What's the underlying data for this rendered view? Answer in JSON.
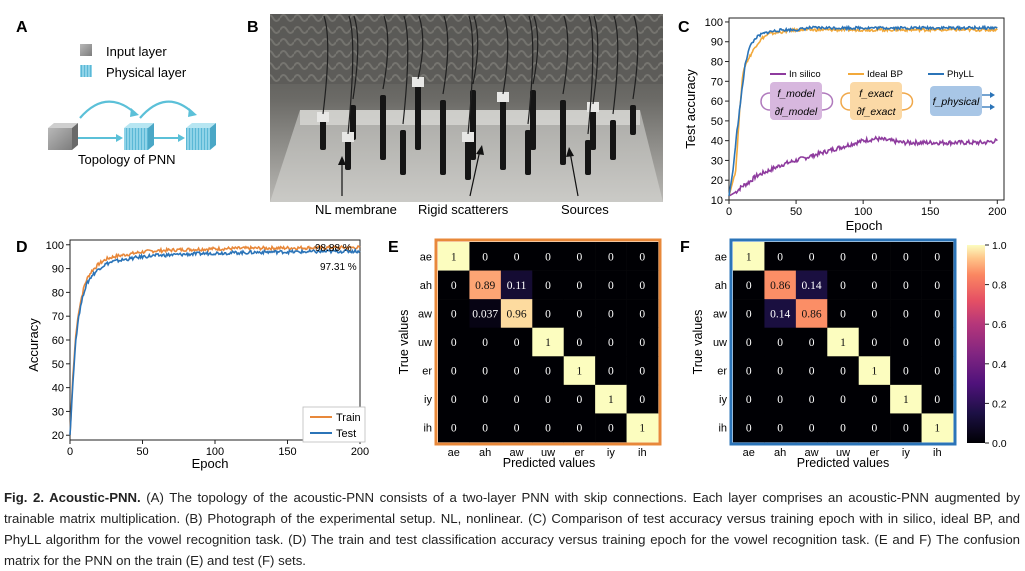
{
  "panel_labels": {
    "a": "A",
    "b": "B",
    "c": "C",
    "d": "D",
    "e": "E",
    "f": "F"
  },
  "panelA": {
    "legend_input": "Input layer",
    "legend_physical": "Physical layer",
    "topology_label": "Topology of PNN"
  },
  "panelB": {
    "label_membrane": "NL membrane",
    "label_scatterers": "Rigid scatterers",
    "label_sources": "Sources"
  },
  "colors": {
    "insilico": "#8e3b9e",
    "idealbp": "#f2a93b",
    "phyll": "#2b74b8",
    "train": "#e8883a",
    "test": "#2b74b8",
    "frame_e": "#e8883a",
    "frame_f": "#2b74b8"
  },
  "panelC_boxes": {
    "model_top": "f_model",
    "model_bot": "∂f_model",
    "exact_top": "f_exact",
    "exact_bot": "∂f_exact",
    "physical": "f_physical"
  },
  "chart_data": [
    {
      "id": "C",
      "type": "line",
      "xlabel": "Epoch",
      "ylabel": "Test accuracy",
      "xlim": [
        0,
        205
      ],
      "ylim": [
        10,
        102
      ],
      "xticks": [
        0,
        50,
        100,
        150,
        200
      ],
      "yticks": [
        10,
        20,
        30,
        40,
        50,
        60,
        70,
        80,
        90,
        100
      ],
      "series": [
        {
          "name": "In silico",
          "color": "#8e3b9e",
          "x": [
            0,
            5,
            10,
            15,
            20,
            30,
            40,
            50,
            60,
            70,
            80,
            90,
            100,
            110,
            120,
            130,
            140,
            150,
            160,
            170,
            180,
            190,
            200
          ],
          "values": [
            12,
            14,
            17,
            19,
            22,
            25,
            28,
            30,
            32,
            34,
            36,
            38,
            40,
            41,
            40,
            39,
            39,
            39,
            39,
            39,
            39,
            39,
            40
          ]
        },
        {
          "name": "Ideal BP",
          "color": "#f2a93b",
          "x": [
            0,
            5,
            8,
            10,
            12,
            15,
            20,
            25,
            30,
            40,
            50,
            60,
            80,
            100,
            120,
            140,
            160,
            180,
            200
          ],
          "values": [
            12,
            25,
            55,
            72,
            78,
            82,
            88,
            92,
            94,
            95,
            96,
            96,
            96,
            96,
            96,
            96,
            96,
            96,
            96
          ]
        },
        {
          "name": "PhyLL",
          "color": "#2b74b8",
          "x": [
            0,
            3,
            6,
            9,
            12,
            15,
            20,
            25,
            30,
            40,
            50,
            60,
            80,
            100,
            120,
            140,
            160,
            180,
            200
          ],
          "values": [
            12,
            25,
            45,
            62,
            78,
            87,
            92,
            94,
            95,
            96,
            96,
            97,
            97,
            97,
            97,
            97,
            97,
            97,
            97
          ]
        }
      ]
    },
    {
      "id": "D",
      "type": "line",
      "xlabel": "Epoch",
      "ylabel": "Accuracy",
      "xlim": [
        0,
        200
      ],
      "ylim": [
        18,
        102
      ],
      "xticks": [
        0,
        50,
        100,
        150,
        200
      ],
      "yticks": [
        20,
        30,
        40,
        50,
        60,
        70,
        80,
        90,
        100
      ],
      "annotations": [
        "98.88 %",
        "97.31 %"
      ],
      "series": [
        {
          "name": "Train",
          "color": "#e8883a",
          "x": [
            0,
            2,
            4,
            6,
            8,
            10,
            12,
            15,
            20,
            25,
            30,
            40,
            50,
            60,
            80,
            100,
            120,
            140,
            160,
            180,
            200
          ],
          "values": [
            20,
            45,
            62,
            72,
            78,
            83,
            86,
            89,
            92,
            94,
            95,
            96,
            97,
            97.5,
            98,
            98.3,
            98.5,
            98.6,
            98.7,
            98.8,
            98.88
          ]
        },
        {
          "name": "Test",
          "color": "#2b74b8",
          "x": [
            0,
            2,
            4,
            6,
            8,
            10,
            12,
            15,
            20,
            25,
            30,
            40,
            50,
            60,
            80,
            100,
            120,
            140,
            160,
            180,
            200
          ],
          "values": [
            20,
            42,
            60,
            70,
            76,
            81,
            84,
            87,
            90,
            92,
            93,
            94,
            95,
            95.5,
            96,
            96.5,
            96.7,
            97,
            97,
            97.2,
            97.31
          ]
        }
      ]
    },
    {
      "id": "E",
      "type": "heatmap",
      "xlabel": "Predicted values",
      "ylabel": "True values",
      "labels": [
        "ae",
        "ah",
        "aw",
        "uw",
        "er",
        "iy",
        "ih"
      ],
      "matrix": [
        [
          "1",
          "0",
          "0",
          "0",
          "0",
          "0",
          "0"
        ],
        [
          "0",
          "0.89",
          "0.11",
          "0",
          "0",
          "0",
          "0"
        ],
        [
          "0",
          "0.037",
          "0.96",
          "0",
          "0",
          "0",
          "0"
        ],
        [
          "0",
          "0",
          "0",
          "1",
          "0",
          "0",
          "0"
        ],
        [
          "0",
          "0",
          "0",
          "0",
          "1",
          "0",
          "0"
        ],
        [
          "0",
          "0",
          "0",
          "0",
          "0",
          "1",
          "0"
        ],
        [
          "0",
          "0",
          "0",
          "0",
          "0",
          "0",
          "1"
        ]
      ]
    },
    {
      "id": "F",
      "type": "heatmap",
      "xlabel": "Predicted values",
      "ylabel": "True values",
      "labels": [
        "ae",
        "ah",
        "aw",
        "uw",
        "er",
        "iy",
        "ih"
      ],
      "matrix": [
        [
          "1",
          "0",
          "0",
          "0",
          "0",
          "0",
          "0"
        ],
        [
          "0",
          "0.86",
          "0.14",
          "0",
          "0",
          "0",
          "0"
        ],
        [
          "0",
          "0.14",
          "0.86",
          "0",
          "0",
          "0",
          "0"
        ],
        [
          "0",
          "0",
          "0",
          "1",
          "0",
          "0",
          "0"
        ],
        [
          "0",
          "0",
          "0",
          "0",
          "1",
          "0",
          "0"
        ],
        [
          "0",
          "0",
          "0",
          "0",
          "0",
          "1",
          "0"
        ],
        [
          "0",
          "0",
          "0",
          "0",
          "0",
          "0",
          "1"
        ]
      ],
      "colorbar": {
        "ticks": [
          "0.0",
          "0.2",
          "0.4",
          "0.6",
          "0.8",
          "1.0"
        ],
        "range": [
          0,
          1
        ]
      }
    }
  ],
  "caption": {
    "title": "Fig. 2. Acoustic-PNN.",
    "body": " (A) The topology of the acoustic-PNN consists of a two-layer PNN with skip connections. Each layer comprises an acoustic-PNN augmented by trainable matrix multiplication. (B) Photograph of the experimental setup. NL, nonlinear. (C) Comparison of test accuracy versus training epoch with in silico, ideal BP, and PhyLL algorithm for the vowel recognition task. (D) The train and test classification accuracy versus training epoch for the vowel recognition task. (E and F) The confusion matrix for the PNN on the train (E) and test (F) sets."
  }
}
